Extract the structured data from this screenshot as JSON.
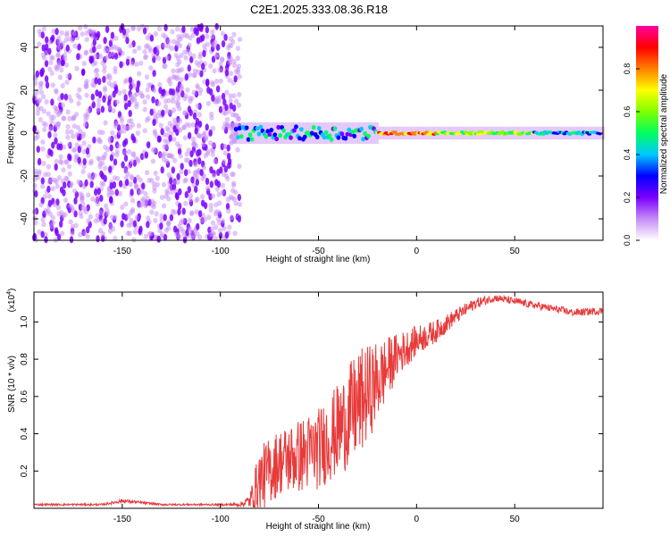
{
  "figure": {
    "title": "C2E1.2025.333.08.36.R18"
  },
  "chart_data": [
    {
      "type": "heatmap",
      "name": "spectrogram",
      "xlabel": "Height of straight line (km)",
      "ylabel": "Frequency (Hz)",
      "xlim": [
        -195,
        95
      ],
      "ylim": [
        -50,
        50
      ],
      "xticks": [
        -150,
        -100,
        -50,
        0,
        50
      ],
      "yticks": [
        -40,
        -20,
        0,
        20,
        40
      ],
      "noise_region_x": [
        -195,
        -90
      ],
      "tone_frequency": 0,
      "colorbar": {
        "label": "Normalized spectral amplitude",
        "range": [
          0,
          1
        ],
        "ticks": [
          "0.0",
          "0.2",
          "0.4",
          "0.6",
          "0.8"
        ],
        "colors": [
          "#ffffff",
          "#c58cf7",
          "#7a00ff",
          "#0000ff",
          "#00c8ff",
          "#00ff60",
          "#80ff00",
          "#ffff00",
          "#ff8000",
          "#ff0000",
          "#ff00a0"
        ]
      }
    },
    {
      "type": "line",
      "name": "snr",
      "xlabel": "Height of straight line (km)",
      "ylabel": "SNR (10 * v/v)",
      "multiplier": "(x10",
      "multiplier_exp": "4",
      "multiplier_close": ")",
      "color": "#e83a3a",
      "xlim": [
        -195,
        95
      ],
      "ylim": [
        0,
        1.16
      ],
      "xticks": [
        -150,
        -100,
        -50,
        0,
        50
      ],
      "yticks": [
        "0.2",
        "0.4",
        "0.6",
        "0.8",
        "1.0"
      ],
      "envelope_x": [
        -195,
        -160,
        -150,
        -130,
        -100,
        -90,
        -85,
        -80,
        -70,
        -60,
        -50,
        -40,
        -30,
        -20,
        -10,
        0,
        10,
        20,
        30,
        40,
        50,
        60,
        70,
        80,
        95
      ],
      "envelope_y": [
        0.02,
        0.02,
        0.04,
        0.02,
        0.02,
        0.02,
        0.04,
        0.15,
        0.25,
        0.28,
        0.32,
        0.42,
        0.55,
        0.68,
        0.82,
        0.9,
        0.95,
        1.03,
        1.1,
        1.13,
        1.11,
        1.09,
        1.07,
        1.05,
        1.06
      ],
      "spread_y": [
        0.005,
        0.005,
        0.01,
        0.005,
        0.005,
        0.01,
        0.04,
        0.18,
        0.18,
        0.2,
        0.22,
        0.25,
        0.3,
        0.22,
        0.12,
        0.08,
        0.06,
        0.04,
        0.03,
        0.02,
        0.02,
        0.02,
        0.02,
        0.02,
        0.02
      ]
    }
  ]
}
